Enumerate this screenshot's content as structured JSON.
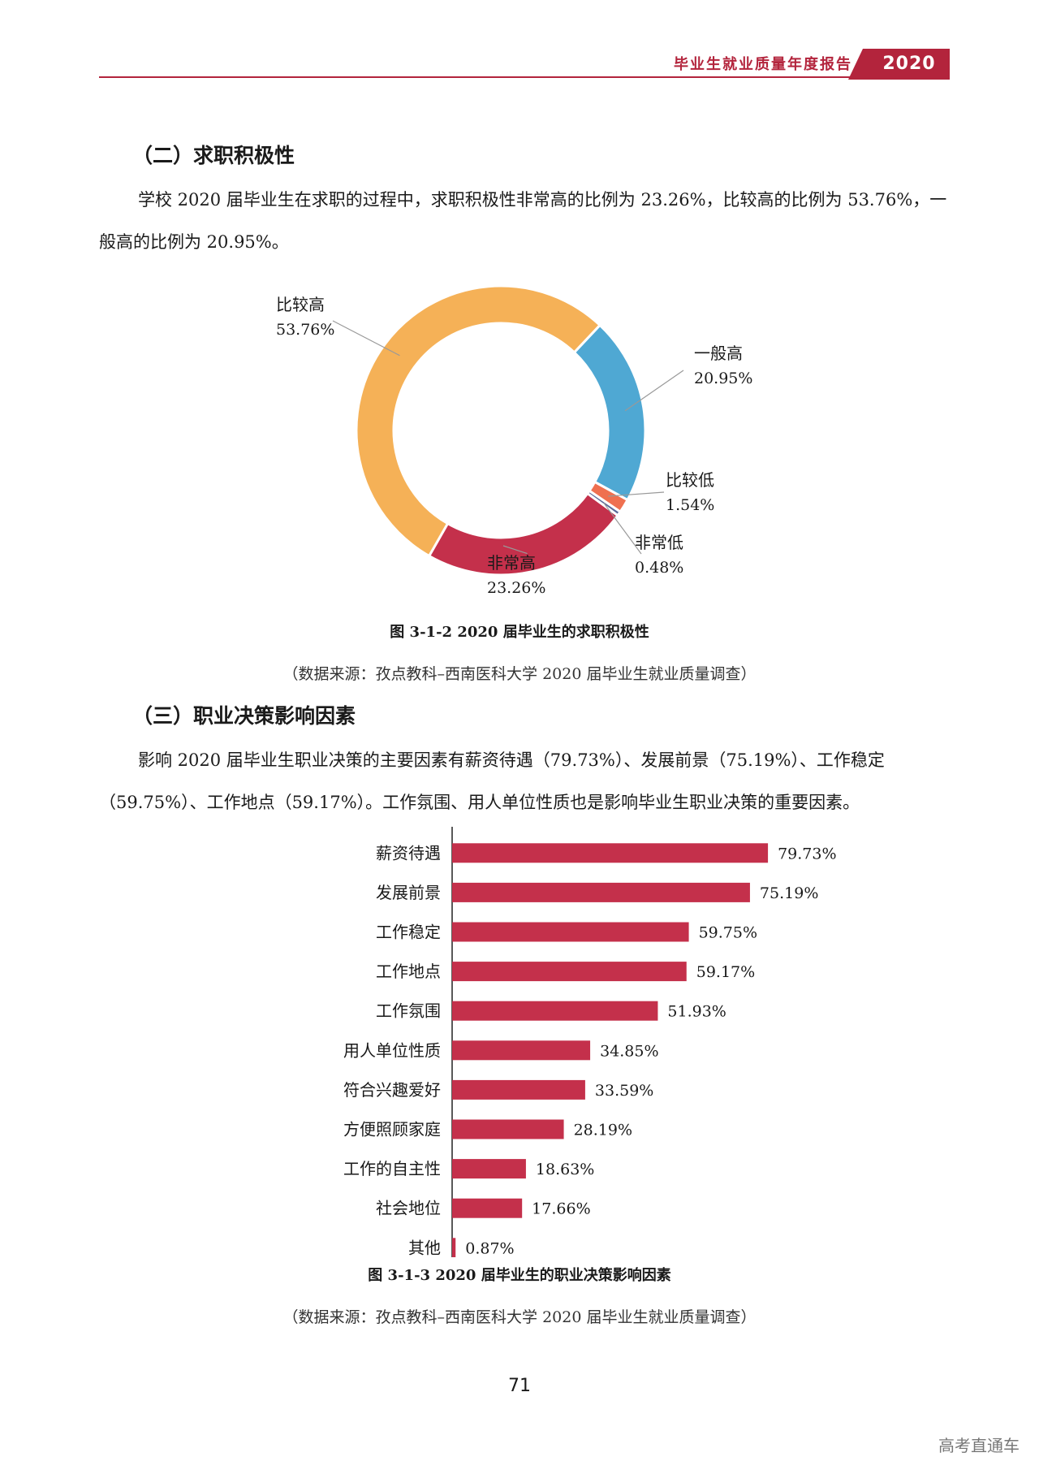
{
  "header": {
    "title": "毕业生就业质量年度报告",
    "year": "2020",
    "accent_color": "#b3243c"
  },
  "section2": {
    "heading": "（二）求职积极性",
    "paragraph": "学校 2020 届毕业生在求职的过程中，求职积极性非常高的比例为 23.26%，比较高的比例为 53.76%，一般高的比例为 20.95%。"
  },
  "figure1": {
    "caption": "图  3-1-2    2020 届毕业生的求职积极性",
    "source": "（数据来源：孜点教科–西南医科大学 2020 届毕业生就业质量调查）"
  },
  "section3": {
    "heading": "（三）职业决策影响因素",
    "paragraph": "影响 2020 届毕业生职业决策的主要因素有薪资待遇（79.73%）、发展前景（75.19%）、工作稳定（59.75%）、工作地点（59.17%）。工作氛围、用人单位性质也是影响毕业生职业决策的重要因素。"
  },
  "figure2": {
    "caption": "图  3-1-3    2020 届毕业生的职业决策影响因素",
    "source": "（数据来源：孜点教科–西南医科大学 2020 届毕业生就业质量调查）"
  },
  "page_number": "71",
  "watermark": "高考直通车",
  "chart_data": [
    {
      "type": "pie",
      "donut": true,
      "slices": [
        {
          "label": "非常高",
          "value": 23.26,
          "value_label": "23.26%",
          "color": "#c4304b"
        },
        {
          "label": "比较高",
          "value": 53.76,
          "value_label": "53.76%",
          "color": "#f5b157"
        },
        {
          "label": "一般高",
          "value": 20.95,
          "value_label": "20.95%",
          "color": "#4fa8d3"
        },
        {
          "label": "比较低",
          "value": 1.54,
          "value_label": "1.54%",
          "color": "#ef7050"
        },
        {
          "label": "非常低",
          "value": 0.48,
          "value_label": "0.48%",
          "color": "#5b6b9a"
        }
      ]
    },
    {
      "type": "bar",
      "orientation": "horizontal",
      "bar_color": "#c4304b",
      "categories": [
        "薪资待遇",
        "发展前景",
        "工作稳定",
        "工作地点",
        "工作氛围",
        "用人单位性质",
        "符合兴趣爱好",
        "方便照顾家庭",
        "工作的自主性",
        "社会地位",
        "其他"
      ],
      "values": [
        79.73,
        75.19,
        59.75,
        59.17,
        51.93,
        34.85,
        33.59,
        28.19,
        18.63,
        17.66,
        0.87
      ],
      "value_labels": [
        "79.73%",
        "75.19%",
        "59.75%",
        "59.17%",
        "51.93%",
        "34.85%",
        "33.59%",
        "28.19%",
        "18.63%",
        "17.66%",
        "0.87%"
      ],
      "xlim": [
        0,
        100
      ]
    }
  ]
}
